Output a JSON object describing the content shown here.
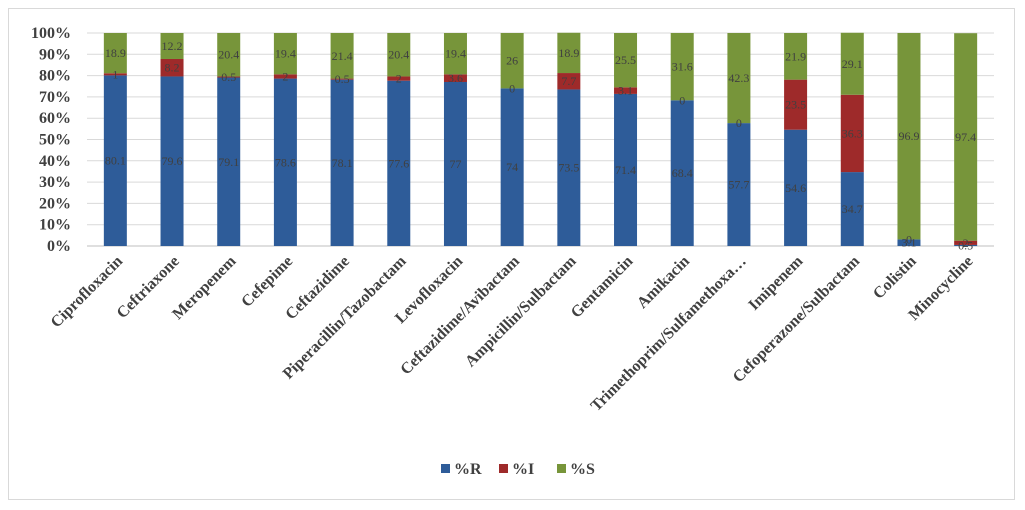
{
  "chart_data": {
    "type": "bar",
    "stacked": true,
    "percent_stacked": true,
    "categories": [
      "Ciprofloxacin",
      "Ceftriaxone",
      "Meropenem",
      "Cefepime",
      "Ceftazidime",
      "Piperacillin/Tazobactam",
      "Levofloxacin",
      "Ceftazidime/Avibactam",
      "Ampicillin/Sulbactam",
      "Gentamicin",
      "Amikacin",
      "Trimethoprim/Sulfamethoxa…",
      "Imipenem",
      "Cefoperazone/Sulbactam",
      "Colistin",
      "Minocycline"
    ],
    "series": [
      {
        "name": "%R",
        "color": "#2e5c99",
        "values": [
          80.1,
          79.6,
          79.1,
          78.6,
          78.1,
          77.6,
          77,
          74,
          73.5,
          71.4,
          68.4,
          57.7,
          54.6,
          34.7,
          3.1,
          0.5
        ],
        "labels": [
          "80.1",
          "79.6",
          "79.1",
          "78.6",
          "78.1",
          "77.6",
          "77",
          "74",
          "73.5",
          "71.4",
          "68.4",
          "57.7",
          "54.6",
          "34.7",
          "3.1",
          "0.5"
        ]
      },
      {
        "name": "%I",
        "color": "#9e2a2a",
        "values": [
          1,
          8.2,
          0.5,
          2,
          0.5,
          2,
          3.6,
          0,
          7.7,
          3.1,
          0,
          0,
          23.5,
          36.3,
          0,
          2
        ],
        "labels": [
          "1",
          "8.2",
          "0.5",
          "2",
          "0.5",
          "2",
          "3.6",
          "0",
          "7.7",
          "3.1",
          "0",
          "0",
          "23.5",
          "36.3",
          "0",
          "2"
        ]
      },
      {
        "name": "%S",
        "color": "#77953a",
        "values": [
          18.9,
          12.2,
          20.4,
          19.4,
          21.4,
          20.4,
          19.4,
          26,
          18.9,
          25.5,
          31.6,
          42.3,
          21.9,
          29.1,
          96.9,
          97.4
        ],
        "labels": [
          "18.9",
          "12.2",
          "20.4",
          "19.4",
          "21.4",
          "20.4",
          "19.4",
          "26",
          "18.9",
          "25.5",
          "31.6",
          "42.3",
          "21.9",
          "29.1",
          "96.9",
          "97.4"
        ]
      }
    ],
    "yticks": [
      "0%",
      "10%",
      "20%",
      "30%",
      "40%",
      "50%",
      "60%",
      "70%",
      "80%",
      "90%",
      "100%"
    ],
    "ylim": [
      0,
      100
    ],
    "grid": true,
    "legend": "bottom",
    "title": "",
    "xlabel": "",
    "ylabel": ""
  }
}
